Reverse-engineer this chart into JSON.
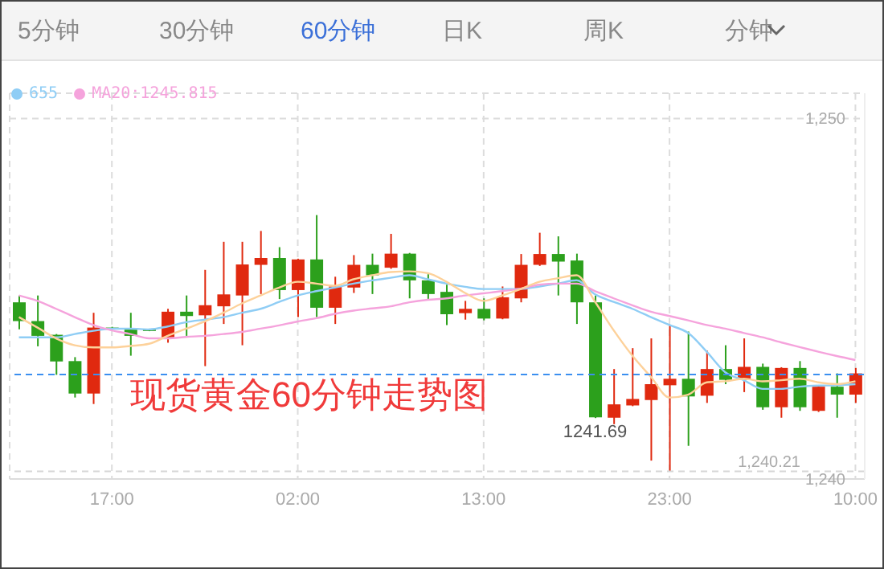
{
  "chart_data": {
    "type": "candlestick",
    "title": "现货黄金60分钟走势图",
    "annotations": [
      "5分钟",
      "30分钟",
      "60分钟",
      "日K",
      "周K",
      "分钟",
      {
        "text": "1241.69",
        "y": 1241.69
      }
    ],
    "categories": [
      null,
      null,
      null,
      null,
      null,
      "17:00",
      null,
      null,
      null,
      null,
      null,
      null,
      null,
      null,
      null,
      "02:00",
      null,
      null,
      null,
      null,
      null,
      null,
      null,
      null,
      null,
      "13:00",
      null,
      null,
      null,
      null,
      null,
      null,
      null,
      null,
      null,
      "23:00",
      null,
      null,
      null,
      null,
      null,
      null,
      null,
      null,
      null,
      "10:00"
    ],
    "ohlc": [
      [
        1244.9,
        1245.09,
        1244.15,
        1244.38
      ],
      [
        1244.38,
        1245.09,
        1243.68,
        1243.97
      ],
      [
        1244.0,
        1244.02,
        1242.89,
        1243.26
      ],
      [
        1243.27,
        1243.38,
        1242.26,
        1242.37
      ],
      [
        1242.37,
        1244.61,
        1242.08,
        1244.2
      ],
      [
        1244.2,
        1244.22,
        1244.16,
        1244.18
      ],
      [
        1244.15,
        1244.61,
        1243.42,
        1243.97
      ],
      [
        1244.15,
        1244.17,
        1244.1,
        1244.12
      ],
      [
        1243.93,
        1244.72,
        1243.78,
        1244.64
      ],
      [
        1244.64,
        1245.09,
        1243.97,
        1244.52
      ],
      [
        1244.54,
        1245.8,
        1243.13,
        1244.82
      ],
      [
        1244.79,
        1246.58,
        1244.3,
        1245.12
      ],
      [
        1245.09,
        1246.58,
        1243.71,
        1245.95
      ],
      [
        1245.94,
        1246.88,
        1245.13,
        1246.13
      ],
      [
        1246.13,
        1246.43,
        1244.99,
        1245.24
      ],
      [
        1245.24,
        1246.11,
        1244.49,
        1246.09
      ],
      [
        1246.09,
        1247.32,
        1244.49,
        1244.75
      ],
      [
        1244.75,
        1245.61,
        1244.3,
        1245.34
      ],
      [
        1245.31,
        1246.21,
        1245.16,
        1245.94
      ],
      [
        1245.94,
        1246.25,
        1245.13,
        1245.65
      ],
      [
        1245.86,
        1246.8,
        1245.83,
        1246.25
      ],
      [
        1246.25,
        1246.27,
        1245.01,
        1245.51
      ],
      [
        1245.51,
        1245.68,
        1244.97,
        1245.13
      ],
      [
        1245.19,
        1245.39,
        1244.27,
        1244.57
      ],
      [
        1244.6,
        1244.94,
        1244.42,
        1244.72
      ],
      [
        1244.72,
        1245.01,
        1244.4,
        1244.45
      ],
      [
        1244.45,
        1245.34,
        1244.43,
        1245.04
      ],
      [
        1245.01,
        1246.24,
        1244.9,
        1245.94
      ],
      [
        1245.94,
        1246.83,
        1245.91,
        1246.24
      ],
      [
        1246.24,
        1246.73,
        1245.09,
        1246.03
      ],
      [
        1246.06,
        1246.25,
        1244.3,
        1244.9
      ],
      [
        1244.9,
        1245.09,
        1241.69,
        1241.71
      ],
      [
        1241.7,
        1243.05,
        1241.52,
        1242.07
      ],
      [
        1242.04,
        1243.63,
        1242.02,
        1242.22
      ],
      [
        1242.19,
        1243.9,
        1240.51,
        1242.63
      ],
      [
        1242.6,
        1244.27,
        1240.21,
        1242.78
      ],
      [
        1242.78,
        1244.09,
        1240.92,
        1242.29
      ],
      [
        1242.31,
        1243.56,
        1242.11,
        1243.05
      ],
      [
        1243.05,
        1243.71,
        1242.63,
        1242.75
      ],
      [
        1242.75,
        1243.9,
        1242.41,
        1243.11
      ],
      [
        1243.11,
        1243.2,
        1241.92,
        1241.99
      ],
      [
        1241.99,
        1243.1,
        1241.7,
        1243.08
      ],
      [
        1243.08,
        1243.27,
        1241.89,
        1241.99
      ],
      [
        1241.89,
        1242.6,
        1241.86,
        1242.56
      ],
      [
        1242.56,
        1242.93,
        1241.7,
        1242.34
      ],
      [
        1242.34,
        1243.08,
        1242.11,
        1242.93
      ]
    ],
    "series": [
      {
        "name": "655",
        "type": "line",
        "color": "#8fcdf5",
        "values": [
          1243.93,
          1243.93,
          1243.93,
          1244.02,
          1244.11,
          1244.17,
          1244.17,
          1244.15,
          1244.23,
          1244.35,
          1244.42,
          1244.49,
          1244.61,
          1244.72,
          1244.91,
          1245.09,
          1245.21,
          1245.31,
          1245.42,
          1245.51,
          1245.58,
          1245.65,
          1245.54,
          1245.42,
          1245.33,
          1245.27,
          1245.27,
          1245.27,
          1245.34,
          1245.42,
          1245.51,
          1245.12,
          1244.91,
          1244.72,
          1244.49,
          1244.27,
          1244.05,
          1243.53,
          1242.96,
          1242.74,
          1242.5,
          1242.5,
          1242.56,
          1242.59,
          1242.6,
          1242.63
        ]
      },
      {
        "name": "MA20:1245.815",
        "type": "line",
        "color": "#f5a3dc",
        "values": [
          1245.09,
          1244.94,
          1244.72,
          1244.49,
          1244.27,
          1244.12,
          1244.02,
          1243.9,
          1243.9,
          1243.94,
          1243.97,
          1244.02,
          1244.08,
          1244.17,
          1244.26,
          1244.37,
          1244.46,
          1244.58,
          1244.67,
          1244.73,
          1244.79,
          1244.9,
          1244.97,
          1245.01,
          1245.09,
          1245.15,
          1245.21,
          1245.28,
          1245.39,
          1245.42,
          1245.42,
          1245.21,
          1245.01,
          1244.82,
          1244.64,
          1244.52,
          1244.4,
          1244.27,
          1244.17,
          1244.05,
          1243.93,
          1243.79,
          1243.66,
          1243.53,
          1243.41,
          1243.3
        ]
      },
      {
        "type": "line",
        "color": "#fdd19a",
        "values": [
          1244.49,
          1244.2,
          1243.9,
          1243.71,
          1243.65,
          1243.65,
          1243.69,
          1243.75,
          1243.97,
          1244.17,
          1244.37,
          1244.61,
          1244.87,
          1245.09,
          1245.31,
          1245.47,
          1245.42,
          1245.36,
          1245.54,
          1245.65,
          1245.74,
          1245.76,
          1245.71,
          1245.47,
          1245.16,
          1244.94,
          1245.09,
          1245.27,
          1245.47,
          1245.57,
          1245.65,
          1244.91,
          1244.12,
          1243.42,
          1242.83,
          1242.26,
          1242.34,
          1242.68,
          1242.71,
          1242.78,
          1242.71,
          1242.74,
          1242.78,
          1242.68,
          1242.63,
          1242.71
        ]
      }
    ],
    "ylim": [
      1240,
      1250.7
    ],
    "yticks": [
      {
        "value": 1250,
        "label": "1,250"
      },
      {
        "value": 1240,
        "label": "1,240"
      }
    ],
    "ref_lines": [
      {
        "axis": "y",
        "value": 1242.9,
        "color": "#3b8ff0",
        "line_style": "dashed"
      },
      {
        "axis": "y",
        "value": 1240.21,
        "label": "1,240.21",
        "color": "#d6d6d6",
        "line_style": "dashed"
      }
    ],
    "grid": true,
    "legend": "top left",
    "marker": "none"
  }
}
